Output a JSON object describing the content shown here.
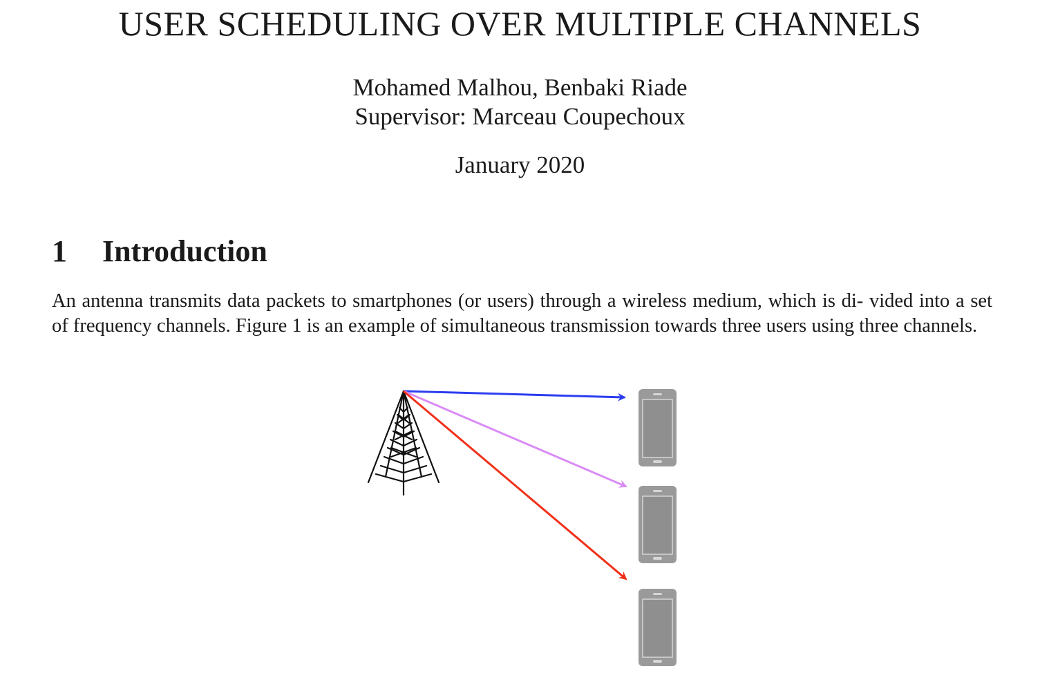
{
  "paper": {
    "title": "USER SCHEDULING OVER MULTIPLE CHANNELS",
    "authors": "Mohamed Malhou, Benbaki Riade",
    "supervisor": "Supervisor: Marceau Coupechoux",
    "date": "January 2020"
  },
  "section": {
    "number": "1",
    "title": "Introduction",
    "paragraph_lines": [
      "An antenna transmits data packets to smartphones (or users) through a wireless medium, which is di-",
      "vided into a set of frequency channels.  Figure 1 is an example of simultaneous transmission towards",
      "three users using three channels."
    ]
  },
  "figure": {
    "icons": [
      "antenna-tower-icon",
      "smartphone-icon",
      "smartphone-icon",
      "smartphone-icon"
    ],
    "channel_colors": [
      "#2b3df0",
      "#d98cf5",
      "#f0301a"
    ],
    "phone_color": "#9a9a9a"
  }
}
